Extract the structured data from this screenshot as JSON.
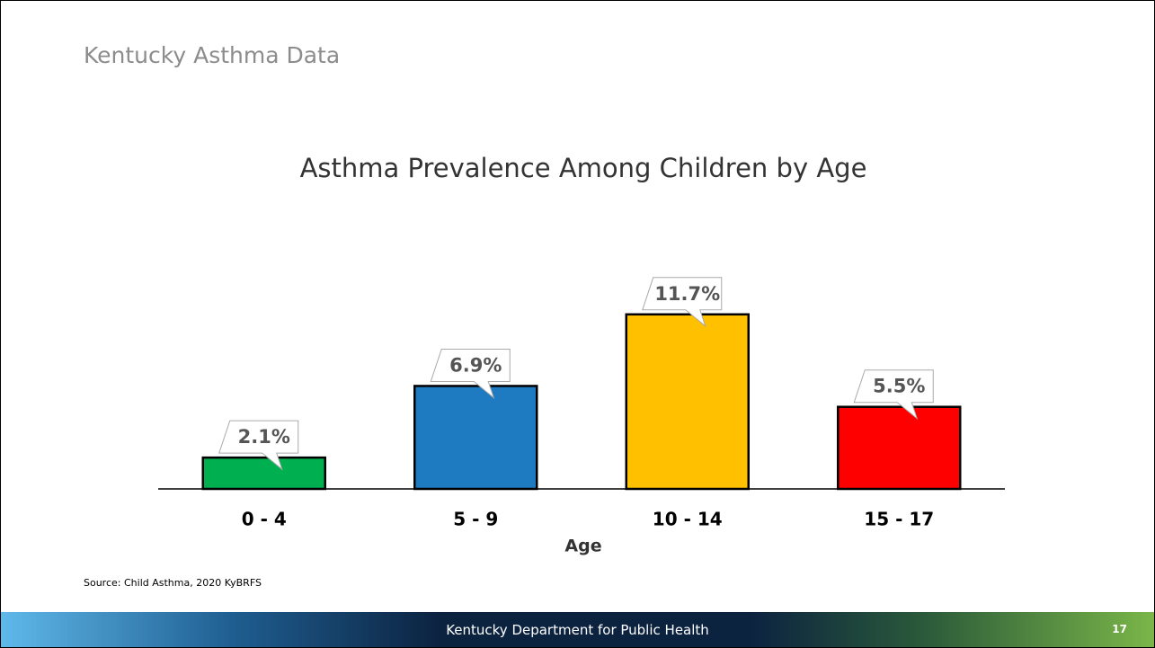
{
  "header": {
    "title": "Kentucky Asthma Data"
  },
  "chart_data": {
    "type": "bar",
    "title": "Asthma Prevalence Among Children by Age",
    "x_label": "Age",
    "categories": [
      "0 - 4",
      "5 - 9",
      "10 - 14",
      "15 - 17"
    ],
    "values": [
      2.1,
      6.9,
      11.7,
      5.5
    ],
    "value_labels": [
      "2.1%",
      "6.9%",
      "11.7%",
      "5.5%"
    ],
    "colors": [
      "#00b050",
      "#1f7bc1",
      "#ffc000",
      "#ff0000"
    ]
  },
  "source": "Source: Child Asthma, 2020 KyBRFS",
  "footer": {
    "text": "Kentucky Department for Public Health",
    "page": "17"
  }
}
